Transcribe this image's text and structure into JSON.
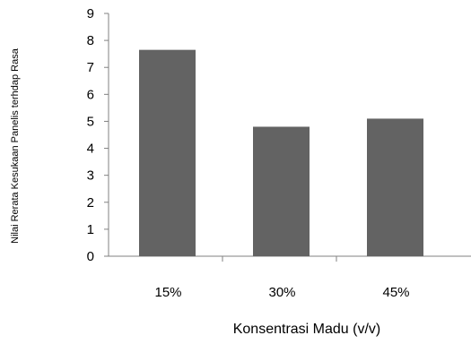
{
  "chart_data": {
    "type": "bar",
    "categories": [
      "15%",
      "30%",
      "45%"
    ],
    "values": [
      7.65,
      4.8,
      5.1
    ],
    "xlabel": "Konsentrasi Madu (v/v)",
    "ylabel": "Nilai Rerata Kesukaan Panelis terhdap Rasa",
    "ylim": [
      0,
      9
    ],
    "yticks": [
      "0",
      "1",
      "2",
      "3",
      "4",
      "5",
      "6",
      "7",
      "8",
      "9"
    ],
    "grid": false,
    "legend": "none",
    "bar_color": "#636363",
    "axis_color": "#808080"
  }
}
